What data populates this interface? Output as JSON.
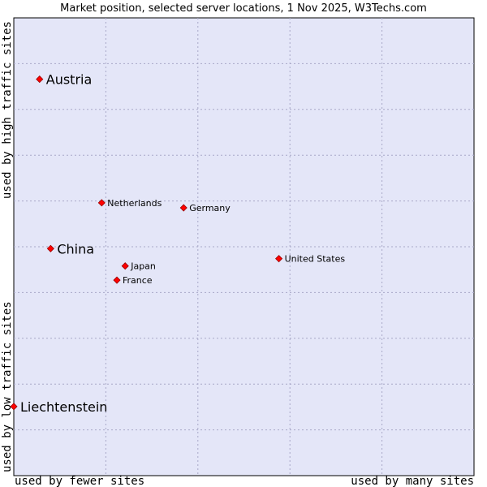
{
  "chart_data": {
    "type": "scatter",
    "title": "Market position, selected server locations, 1 Nov 2025, W3Techs.com",
    "xlabel_left": "used by fewer sites",
    "xlabel_right": "used by many sites",
    "ylabel_bottom": "used by low traffic sites",
    "ylabel_top": "used by high traffic sites",
    "xlim": [
      0,
      100
    ],
    "ylim": [
      0,
      100
    ],
    "grid": true,
    "colors": {
      "plot_bg": "#e4e6f8",
      "point": "#ff0000",
      "point_edge": "#990000",
      "grid": "#a8a8c8"
    },
    "points": [
      {
        "label": "Austria",
        "x": 5.6,
        "y": 86.6,
        "size": "large"
      },
      {
        "label": "Netherlands",
        "x": 19.1,
        "y": 59.6,
        "size": "small"
      },
      {
        "label": "Germany",
        "x": 36.9,
        "y": 58.5,
        "size": "small"
      },
      {
        "label": "China",
        "x": 8.0,
        "y": 49.6,
        "size": "large"
      },
      {
        "label": "United States",
        "x": 57.6,
        "y": 47.4,
        "size": "small"
      },
      {
        "label": "Japan",
        "x": 24.2,
        "y": 45.8,
        "size": "small"
      },
      {
        "label": "France",
        "x": 22.4,
        "y": 42.7,
        "size": "small"
      },
      {
        "label": "Liechtenstein",
        "x": 0.0,
        "y": 15.1,
        "size": "large"
      }
    ]
  }
}
